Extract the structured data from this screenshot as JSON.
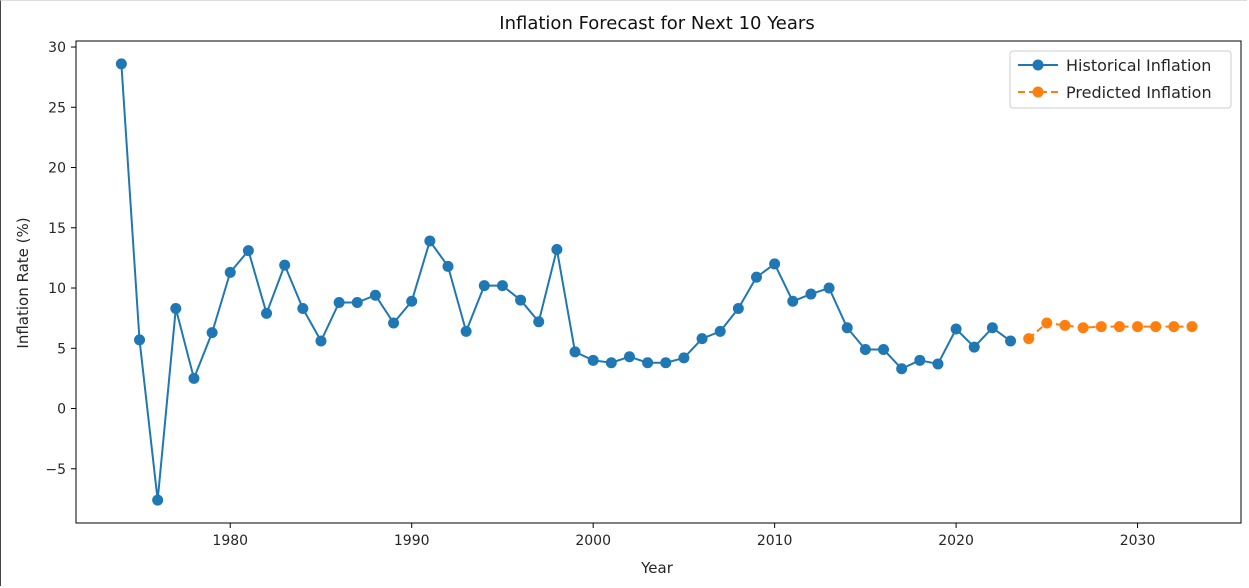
{
  "chart_data": {
    "type": "line",
    "title": "Inflation Forecast for Next 10 Years",
    "xlabel": "Year",
    "ylabel": "Inflation Rate (%)",
    "xlim": [
      1971.5,
      2035.7
    ],
    "ylim": [
      -9.5,
      30.5
    ],
    "x_ticks": [
      1980,
      1990,
      2000,
      2010,
      2020,
      2030
    ],
    "y_ticks": [
      -5,
      0,
      5,
      10,
      15,
      20,
      25,
      30
    ],
    "y_tick_labels": [
      "−5",
      "0",
      "5",
      "10",
      "15",
      "20",
      "25",
      "30"
    ],
    "grid": false,
    "legend": "top-right",
    "series": [
      {
        "name": "Historical Inflation",
        "color": "#1f77b4",
        "line_style": "solid",
        "marker": "circle",
        "x": [
          1974,
          1975,
          1976,
          1977,
          1978,
          1979,
          1980,
          1981,
          1982,
          1983,
          1984,
          1985,
          1986,
          1987,
          1988,
          1989,
          1990,
          1991,
          1992,
          1993,
          1994,
          1995,
          1996,
          1997,
          1998,
          1999,
          2000,
          2001,
          2002,
          2003,
          2004,
          2005,
          2006,
          2007,
          2008,
          2009,
          2010,
          2011,
          2012,
          2013,
          2014,
          2015,
          2016,
          2017,
          2018,
          2019,
          2020,
          2021,
          2022,
          2023
        ],
        "y": [
          28.6,
          5.7,
          -7.6,
          8.3,
          2.5,
          6.3,
          11.3,
          13.1,
          7.9,
          11.9,
          8.3,
          5.6,
          8.8,
          8.8,
          9.4,
          7.1,
          8.9,
          13.9,
          11.8,
          6.4,
          10.2,
          10.2,
          9.0,
          7.2,
          13.2,
          4.7,
          4.0,
          3.8,
          4.3,
          3.8,
          3.8,
          4.2,
          5.8,
          6.4,
          8.3,
          10.9,
          12.0,
          8.9,
          9.5,
          10.0,
          6.7,
          4.9,
          4.9,
          3.3,
          4.0,
          3.7,
          6.6,
          5.1,
          6.7,
          5.6
        ]
      },
      {
        "name": "Predicted Inflation",
        "color": "#ff7f0e",
        "line_style": "dashed",
        "marker": "circle",
        "x": [
          2024,
          2025,
          2026,
          2027,
          2028,
          2029,
          2030,
          2031,
          2032,
          2033
        ],
        "y": [
          5.8,
          7.1,
          6.9,
          6.7,
          6.8,
          6.8,
          6.8,
          6.8,
          6.8,
          6.8
        ]
      }
    ]
  }
}
